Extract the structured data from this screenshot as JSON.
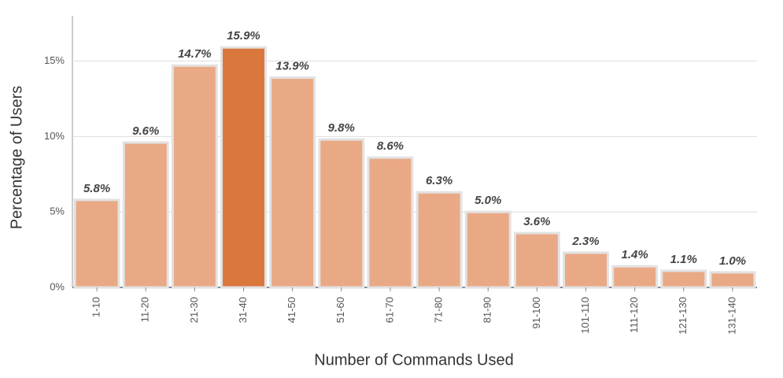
{
  "chart_data": {
    "type": "bar",
    "x_label": "Number of Commands Used",
    "y_label": "Percentage of Users",
    "categories": [
      "1-10",
      "11-20",
      "21-30",
      "31-40",
      "41-50",
      "51-60",
      "61-70",
      "71-80",
      "81-90",
      "91-100",
      "101-110",
      "111-120",
      "121-130",
      "131-140"
    ],
    "values": [
      5.8,
      9.6,
      14.7,
      15.9,
      13.9,
      9.8,
      8.6,
      6.3,
      5.0,
      3.6,
      2.3,
      1.4,
      1.1,
      1.0
    ],
    "value_labels": [
      "5.8%",
      "9.6%",
      "14.7%",
      "15.9%",
      "13.9%",
      "9.8%",
      "8.6%",
      "6.3%",
      "5.0%",
      "3.6%",
      "2.3%",
      "1.4%",
      "1.1%",
      "1.0%"
    ],
    "colors": [
      "#eaa985",
      "#eaa985",
      "#eaa985",
      "#d9773d",
      "#eaa985",
      "#eaa985",
      "#eaa985",
      "#eaa985",
      "#eaa985",
      "#eaa985",
      "#eaa985",
      "#eaa985",
      "#eaa985",
      "#eaa985"
    ],
    "ylim": [
      0,
      18
    ],
    "yticks": [
      {
        "value": 0,
        "label": "0%"
      },
      {
        "value": 5,
        "label": "5%"
      },
      {
        "value": 10,
        "label": "10%"
      },
      {
        "value": 15,
        "label": "15%"
      }
    ],
    "grid": true
  }
}
